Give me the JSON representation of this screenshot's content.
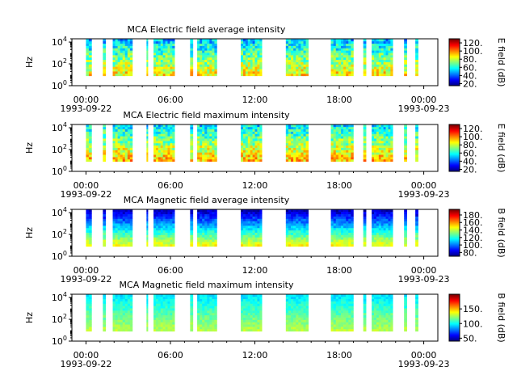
{
  "chart_data": [
    {
      "type": "heatmap",
      "title": "MCA  Electric field average intensity",
      "ylabel": "Hz",
      "yticks": [
        "10^0",
        "10^2",
        "10^4"
      ],
      "ylim": [
        1,
        20000
      ],
      "yscale": "log",
      "xticks": [
        {
          "hour": 0,
          "label": "00:00",
          "date": "1993-09-22"
        },
        {
          "hour": 6,
          "label": "06:00"
        },
        {
          "hour": 12,
          "label": "12:00"
        },
        {
          "hour": 18,
          "label": "18:00"
        },
        {
          "hour": 24,
          "label": "00:00",
          "date": "1993-09-23"
        }
      ],
      "xlim_hours": [
        -1,
        25
      ],
      "colorbar": {
        "label": "E field (dB)",
        "ticks": [
          "20.",
          "40.",
          "60.",
          "80.",
          "100.",
          "120."
        ],
        "range": [
          15,
          130
        ],
        "colormap": "jet"
      },
      "segments_hours": [
        [
          0.0,
          0.4
        ],
        [
          1.2,
          1.4
        ],
        [
          1.9,
          3.3
        ],
        [
          4.3,
          4.4
        ],
        [
          4.8,
          6.3
        ],
        [
          7.4,
          7.6
        ],
        [
          7.9,
          9.3
        ],
        [
          11.0,
          12.5
        ],
        [
          14.2,
          15.8
        ],
        [
          17.4,
          19.0
        ],
        [
          19.7,
          19.9
        ],
        [
          20.3,
          21.8
        ],
        [
          22.6,
          22.8
        ],
        [
          23.4,
          23.6
        ]
      ],
      "freq_hz_range": [
        8,
        20000
      ],
      "intensity_profile_db": {
        "low_freq": 90,
        "high_freq": 50
      }
    },
    {
      "type": "heatmap",
      "title": "MCA  Electric field maximum intensity",
      "ylabel": "Hz",
      "yticks": [
        "10^0",
        "10^2",
        "10^4"
      ],
      "ylim": [
        1,
        20000
      ],
      "yscale": "log",
      "xticks": [
        {
          "hour": 0,
          "label": "00:00",
          "date": "1993-09-22"
        },
        {
          "hour": 6,
          "label": "06:00"
        },
        {
          "hour": 12,
          "label": "12:00"
        },
        {
          "hour": 18,
          "label": "18:00"
        },
        {
          "hour": 24,
          "label": "00:00",
          "date": "1993-09-23"
        }
      ],
      "xlim_hours": [
        -1,
        25
      ],
      "colorbar": {
        "label": "E field (dB)",
        "ticks": [
          "20.",
          "40.",
          "60.",
          "80.",
          "100.",
          "120."
        ],
        "range": [
          15,
          130
        ],
        "colormap": "jet"
      },
      "segments_hours": [
        [
          0.0,
          0.4
        ],
        [
          1.2,
          1.4
        ],
        [
          1.9,
          3.3
        ],
        [
          4.3,
          4.4
        ],
        [
          4.8,
          6.3
        ],
        [
          7.4,
          7.6
        ],
        [
          7.9,
          9.3
        ],
        [
          11.0,
          12.5
        ],
        [
          14.2,
          15.8
        ],
        [
          17.4,
          19.0
        ],
        [
          19.7,
          19.9
        ],
        [
          20.3,
          21.8
        ],
        [
          22.6,
          22.8
        ],
        [
          23.4,
          23.6
        ]
      ],
      "freq_hz_range": [
        8,
        20000
      ],
      "intensity_profile_db": {
        "low_freq": 95,
        "high_freq": 55
      }
    },
    {
      "type": "heatmap",
      "title": "MCA  Magnetic field average intensity",
      "ylabel": "Hz",
      "yticks": [
        "10^0",
        "10^2",
        "10^4"
      ],
      "ylim": [
        1,
        20000
      ],
      "yscale": "log",
      "xticks": [
        {
          "hour": 0,
          "label": "00:00",
          "date": "1993-09-22"
        },
        {
          "hour": 6,
          "label": "06:00"
        },
        {
          "hour": 12,
          "label": "12:00"
        },
        {
          "hour": 18,
          "label": "18:00"
        },
        {
          "hour": 24,
          "label": "00:00",
          "date": "1993-09-23"
        }
      ],
      "xlim_hours": [
        -1,
        25
      ],
      "colorbar": {
        "label": "B field (dB)",
        "ticks": [
          "80.",
          "100.",
          "120.",
          "140.",
          "160.",
          "180."
        ],
        "range": [
          70,
          195
        ],
        "colormap": "jet"
      },
      "segments_hours": [
        [
          0.0,
          0.4
        ],
        [
          1.2,
          1.4
        ],
        [
          1.9,
          3.3
        ],
        [
          4.3,
          4.4
        ],
        [
          4.8,
          6.3
        ],
        [
          7.4,
          7.6
        ],
        [
          7.9,
          9.3
        ],
        [
          11.0,
          12.5
        ],
        [
          14.2,
          15.8
        ],
        [
          17.4,
          19.0
        ],
        [
          19.7,
          19.9
        ],
        [
          20.3,
          21.8
        ],
        [
          22.6,
          22.8
        ],
        [
          23.4,
          23.6
        ]
      ],
      "freq_hz_range": [
        8,
        20000
      ],
      "intensity_profile_db": {
        "low_freq": 150,
        "high_freq": 75
      }
    },
    {
      "type": "heatmap",
      "title": "MCA  Magnetic field maximum intensity",
      "ylabel": "Hz",
      "yticks": [
        "10^0",
        "10^2",
        "10^4"
      ],
      "ylim": [
        1,
        20000
      ],
      "yscale": "log",
      "xticks": [
        {
          "hour": 0,
          "label": "00:00",
          "date": "1993-09-22"
        },
        {
          "hour": 6,
          "label": "06:00"
        },
        {
          "hour": 12,
          "label": "12:00"
        },
        {
          "hour": 18,
          "label": "18:00"
        },
        {
          "hour": 24,
          "label": "00:00",
          "date": "1993-09-23"
        }
      ],
      "xlim_hours": [
        -1,
        25
      ],
      "colorbar": {
        "label": "B field (dB)",
        "ticks": [
          "50.",
          "100.",
          "150."
        ],
        "range": [
          40,
          200
        ],
        "colormap": "jet"
      },
      "segments_hours": [
        [
          0.0,
          0.4
        ],
        [
          1.2,
          1.4
        ],
        [
          1.9,
          3.3
        ],
        [
          4.3,
          4.4
        ],
        [
          4.8,
          6.3
        ],
        [
          7.4,
          7.6
        ],
        [
          7.9,
          9.3
        ],
        [
          11.0,
          12.5
        ],
        [
          14.2,
          15.8
        ],
        [
          17.4,
          19.0
        ],
        [
          19.7,
          19.9
        ],
        [
          20.3,
          21.8
        ],
        [
          22.6,
          22.8
        ],
        [
          23.4,
          23.6
        ]
      ],
      "freq_hz_range": [
        8,
        20000
      ],
      "intensity_profile_db": {
        "low_freq": 130,
        "high_freq": 95
      }
    }
  ]
}
